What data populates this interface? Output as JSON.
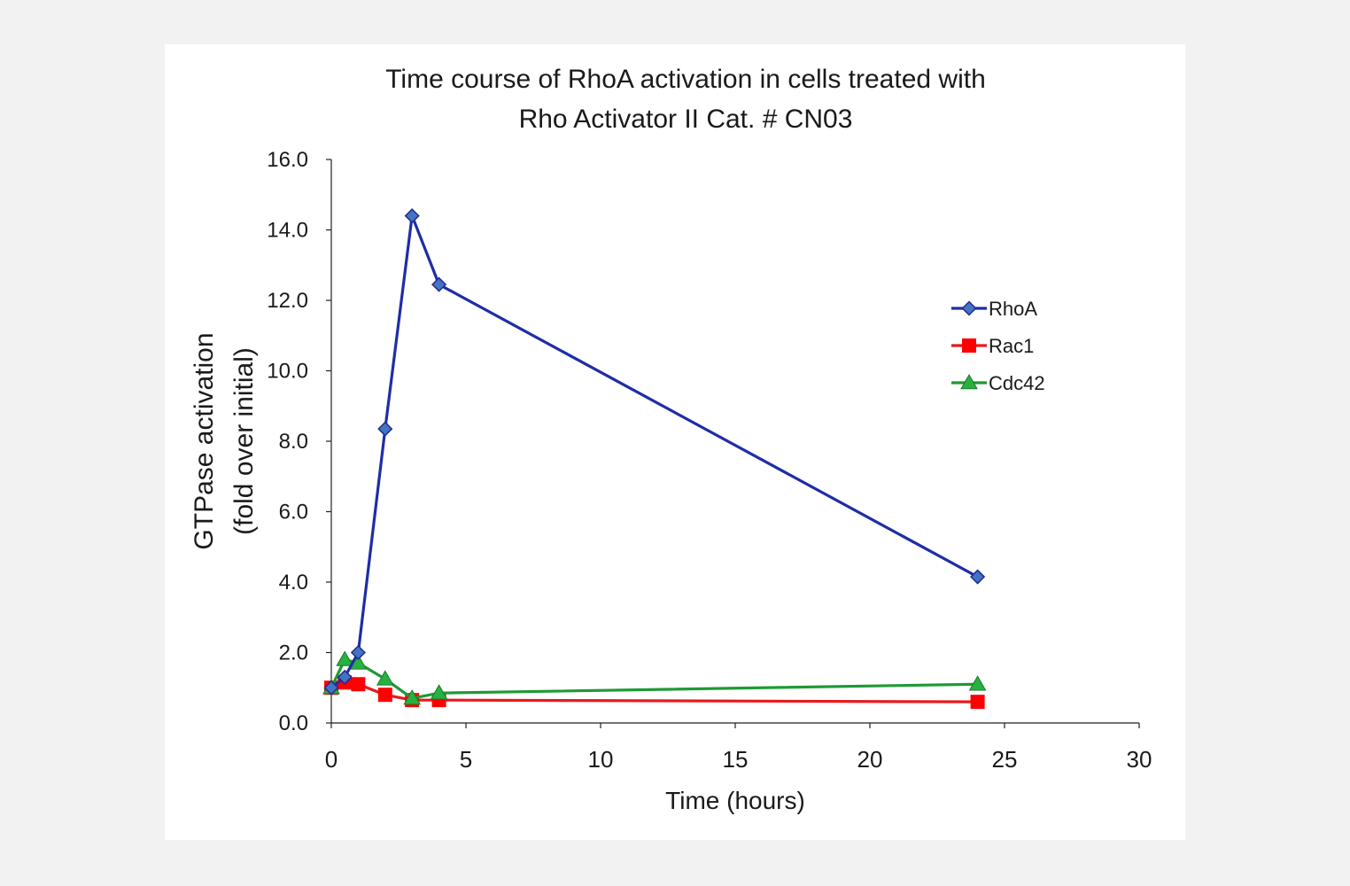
{
  "chart_data": {
    "type": "line",
    "title_lines": [
      "Time course of RhoA activation in cells treated with",
      "Rho Activator II Cat. # CN03"
    ],
    "xlabel": "Time (hours)",
    "ylabel_lines": [
      "GTPase activation",
      "(fold over initial)"
    ],
    "xlim": [
      0,
      30
    ],
    "ylim": [
      0,
      16
    ],
    "xticks": [
      "0",
      "5",
      "10",
      "15",
      "20",
      "25",
      "30"
    ],
    "yticks": [
      "0.0",
      "2.0",
      "4.0",
      "6.0",
      "8.0",
      "10.0",
      "12.0",
      "14.0",
      "16.0"
    ],
    "grid": false,
    "legend_position": "right",
    "series": [
      {
        "name": "RhoA",
        "color": "#1f2da6",
        "marker_color": "#4472c4",
        "marker": "diamond",
        "x": [
          0,
          0.5,
          1,
          2,
          3,
          4,
          24
        ],
        "values": [
          1.0,
          1.3,
          2.0,
          8.35,
          14.4,
          12.45,
          4.15
        ]
      },
      {
        "name": "Rac1",
        "color": "#e8191c",
        "marker_color": "#ff0000",
        "marker": "square",
        "x": [
          0,
          0.5,
          1,
          2,
          3,
          4,
          24
        ],
        "values": [
          1.0,
          1.15,
          1.1,
          0.8,
          0.65,
          0.65,
          0.6
        ]
      },
      {
        "name": "Cdc42",
        "color": "#1e9a35",
        "marker_color": "#28b040",
        "marker": "triangle",
        "x": [
          0,
          0.5,
          1,
          2,
          3,
          4,
          24
        ],
        "values": [
          1.0,
          1.8,
          1.7,
          1.25,
          0.7,
          0.85,
          1.1
        ]
      }
    ]
  }
}
